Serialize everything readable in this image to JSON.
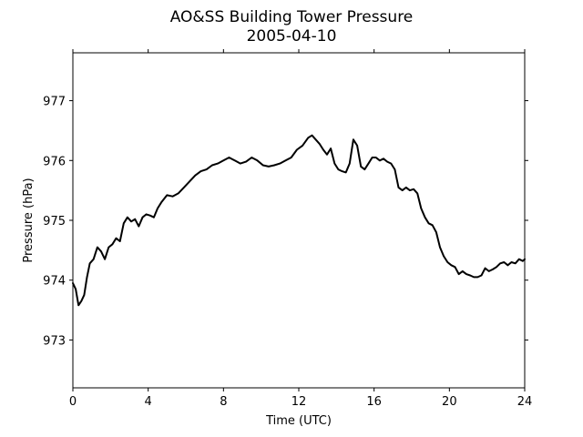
{
  "colors": {
    "line": "#000000",
    "axes": "#000000",
    "background": "#ffffff"
  },
  "chart_data": {
    "type": "line",
    "title": "AO&SS Building Tower Pressure",
    "subtitle": "2005-04-10",
    "xlabel": "Time (UTC)",
    "ylabel": "Pressure (hPa)",
    "xlim": [
      0,
      24
    ],
    "ylim": [
      972.2,
      977.8
    ],
    "xticks": [
      0,
      4,
      8,
      12,
      16,
      20,
      24
    ],
    "yticks": [
      973,
      974,
      975,
      976,
      977
    ],
    "grid": false,
    "legend": "none",
    "series": [
      {
        "x": [
          0,
          0.15,
          0.3,
          0.45,
          0.6,
          0.75,
          0.9,
          1.1,
          1.3,
          1.5,
          1.7,
          1.9,
          2.1,
          2.3,
          2.5,
          2.7,
          2.9,
          3.1,
          3.3,
          3.5,
          3.7,
          3.9,
          4.1,
          4.3,
          4.5,
          4.7,
          5.0,
          5.3,
          5.6,
          5.9,
          6.2,
          6.5,
          6.8,
          7.1,
          7.4,
          7.7,
          8.0,
          8.3,
          8.6,
          8.9,
          9.2,
          9.5,
          9.8,
          10.1,
          10.4,
          10.7,
          11.0,
          11.3,
          11.6,
          11.9,
          12.2,
          12.5,
          12.7,
          12.9,
          13.1,
          13.3,
          13.5,
          13.7,
          13.9,
          14.1,
          14.3,
          14.5,
          14.7,
          14.9,
          15.1,
          15.3,
          15.5,
          15.7,
          15.9,
          16.1,
          16.3,
          16.5,
          16.7,
          16.9,
          17.1,
          17.3,
          17.5,
          17.7,
          17.9,
          18.1,
          18.3,
          18.5,
          18.7,
          18.9,
          19.1,
          19.3,
          19.5,
          19.7,
          19.9,
          20.1,
          20.3,
          20.5,
          20.7,
          20.9,
          21.1,
          21.3,
          21.5,
          21.7,
          21.9,
          22.1,
          22.3,
          22.5,
          22.7,
          22.9,
          23.1,
          23.3,
          23.5,
          23.7,
          23.9,
          24.0
        ],
        "y": [
          973.95,
          973.85,
          973.58,
          973.65,
          973.75,
          974.05,
          974.28,
          974.35,
          974.55,
          974.48,
          974.35,
          974.55,
          974.6,
          974.7,
          974.65,
          974.95,
          975.05,
          974.98,
          975.02,
          974.9,
          975.05,
          975.1,
          975.08,
          975.05,
          975.2,
          975.3,
          975.42,
          975.4,
          975.45,
          975.55,
          975.65,
          975.75,
          975.82,
          975.85,
          975.92,
          975.95,
          976.0,
          976.05,
          976.0,
          975.95,
          975.98,
          976.05,
          976.0,
          975.92,
          975.9,
          975.92,
          975.95,
          976.0,
          976.05,
          976.18,
          976.25,
          976.38,
          976.42,
          976.35,
          976.28,
          976.18,
          976.1,
          976.2,
          975.95,
          975.85,
          975.82,
          975.8,
          975.95,
          976.35,
          976.25,
          975.9,
          975.85,
          975.95,
          976.05,
          976.05,
          976.0,
          976.03,
          975.98,
          975.95,
          975.85,
          975.55,
          975.5,
          975.55,
          975.5,
          975.52,
          975.45,
          975.2,
          975.05,
          974.95,
          974.92,
          974.8,
          974.55,
          974.4,
          974.3,
          974.25,
          974.22,
          974.1,
          974.15,
          974.1,
          974.08,
          974.05,
          974.05,
          974.08,
          974.2,
          974.15,
          974.18,
          974.22,
          974.28,
          974.3,
          974.25,
          974.3,
          974.28,
          974.35,
          974.32,
          974.35
        ]
      }
    ]
  }
}
